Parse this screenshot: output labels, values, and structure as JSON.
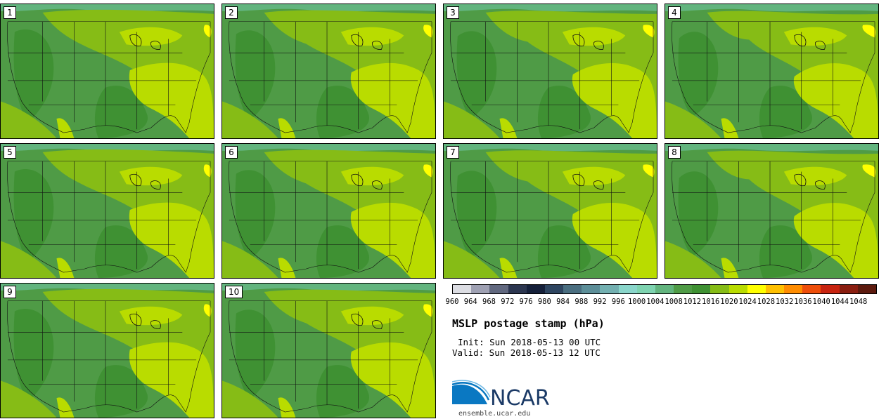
{
  "chart_data": {
    "type": "map",
    "title": "MSLP postage stamp (hPa)",
    "init": "Init: Sun 2018-05-13 00 UTC",
    "valid": "Valid: Sun 2018-05-13 12 UTC",
    "members": [
      "1",
      "2",
      "3",
      "4",
      "5",
      "6",
      "7",
      "8",
      "9",
      "10"
    ],
    "colorbar": {
      "levels": [
        960,
        964,
        968,
        972,
        976,
        980,
        984,
        988,
        992,
        996,
        1000,
        1004,
        1008,
        1012,
        1016,
        1020,
        1024,
        1028,
        1032,
        1036,
        1040,
        1044,
        1048
      ],
      "tick_labels": [
        "960",
        "964",
        "968",
        "972",
        "976",
        "980",
        "984",
        "988",
        "992",
        "996",
        "1000",
        "1004",
        "1008",
        "1012",
        "1016",
        "1020",
        "1024",
        "1028",
        "1032",
        "1036",
        "1040",
        "1044",
        "1048"
      ],
      "colors": [
        "#dcdde3",
        "#9fa1b3",
        "#61687f",
        "#2c3650",
        "#15203a",
        "#2e4560",
        "#4a6e80",
        "#5c8e98",
        "#73b0b1",
        "#8ad6cb",
        "#7ed3b0",
        "#62b47e",
        "#4f9b46",
        "#3f9133",
        "#86bc16",
        "#b9dc00",
        "#ffff00",
        "#ffc000",
        "#ff8c00",
        "#ee4e0a",
        "#c82410",
        "#8a1e10",
        "#5c1a0e"
      ]
    }
  },
  "map_colors": {
    "band_1008": "#4f9b46",
    "band_1012": "#3f9133",
    "band_1016": "#86bc16",
    "band_1020": "#b9dc00",
    "band_1024": "#ffff00",
    "band_1004": "#62b47e"
  },
  "logo": {
    "text": "NCAR",
    "url_text": "ensemble.ucar.edu"
  }
}
